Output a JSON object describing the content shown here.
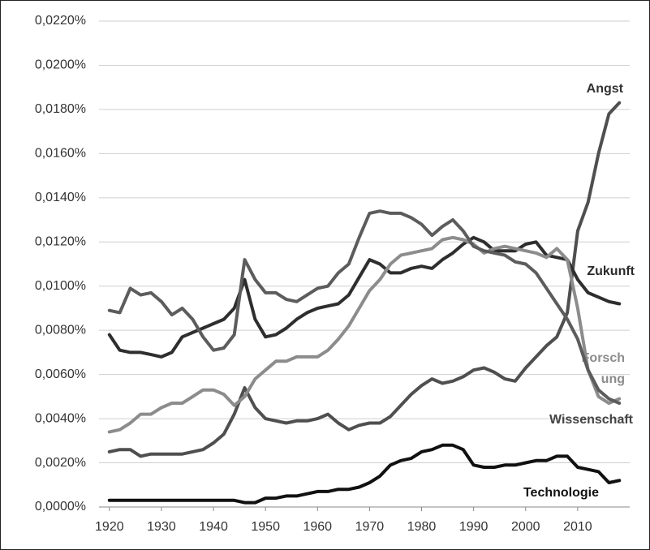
{
  "chart_data": {
    "type": "line",
    "x": [
      1920,
      1922,
      1924,
      1926,
      1928,
      1930,
      1932,
      1934,
      1936,
      1938,
      1940,
      1942,
      1944,
      1946,
      1948,
      1950,
      1952,
      1954,
      1956,
      1958,
      1960,
      1962,
      1964,
      1966,
      1968,
      1970,
      1972,
      1974,
      1976,
      1978,
      1980,
      1982,
      1984,
      1986,
      1988,
      1990,
      1992,
      1994,
      1996,
      1998,
      2000,
      2002,
      2004,
      2006,
      2008,
      2010,
      2012,
      2014,
      2016,
      2018
    ],
    "series": [
      {
        "name": "Angst",
        "color": "#4f4f4f",
        "values": [
          0.0025,
          0.0026,
          0.0026,
          0.0023,
          0.0024,
          0.0024,
          0.0024,
          0.0024,
          0.0025,
          0.0026,
          0.0029,
          0.0033,
          0.0042,
          0.0054,
          0.0045,
          0.004,
          0.0039,
          0.0038,
          0.0039,
          0.0039,
          0.004,
          0.0042,
          0.0038,
          0.0035,
          0.0037,
          0.0038,
          0.0038,
          0.0041,
          0.0046,
          0.0051,
          0.0055,
          0.0058,
          0.0056,
          0.0057,
          0.0059,
          0.0062,
          0.0063,
          0.0061,
          0.0058,
          0.0057,
          0.0063,
          0.0068,
          0.0073,
          0.0077,
          0.0088,
          0.0125,
          0.0138,
          0.016,
          0.0178,
          0.0183
        ]
      },
      {
        "name": "Zukunft",
        "color": "#2e2e2e",
        "values": [
          0.0078,
          0.0071,
          0.007,
          0.007,
          0.0069,
          0.0068,
          0.007,
          0.0077,
          0.0079,
          0.0081,
          0.0083,
          0.0085,
          0.009,
          0.0103,
          0.0085,
          0.0077,
          0.0078,
          0.0081,
          0.0085,
          0.0088,
          0.009,
          0.0091,
          0.0092,
          0.0096,
          0.0104,
          0.0112,
          0.011,
          0.0106,
          0.0106,
          0.0108,
          0.0109,
          0.0108,
          0.0112,
          0.0115,
          0.0119,
          0.0122,
          0.012,
          0.0116,
          0.0116,
          0.0116,
          0.0119,
          0.012,
          0.0114,
          0.0113,
          0.0112,
          0.0103,
          0.0097,
          0.0095,
          0.0093,
          0.0092
        ]
      },
      {
        "name": "Forsch ung",
        "color": "#8c8c8c",
        "values": [
          0.0034,
          0.0035,
          0.0038,
          0.0042,
          0.0042,
          0.0045,
          0.0047,
          0.0047,
          0.005,
          0.0053,
          0.0053,
          0.0051,
          0.0046,
          0.005,
          0.0058,
          0.0062,
          0.0066,
          0.0066,
          0.0068,
          0.0068,
          0.0068,
          0.0071,
          0.0076,
          0.0082,
          0.009,
          0.0098,
          0.0103,
          0.011,
          0.0114,
          0.0115,
          0.0116,
          0.0117,
          0.0121,
          0.0122,
          0.0121,
          0.0119,
          0.0115,
          0.0117,
          0.0118,
          0.0117,
          0.0116,
          0.0115,
          0.0113,
          0.0117,
          0.0112,
          0.009,
          0.0062,
          0.005,
          0.0047,
          0.0049
        ]
      },
      {
        "name": "Wissenschaft",
        "color": "#5c5c5c",
        "values": [
          0.0089,
          0.0088,
          0.0099,
          0.0096,
          0.0097,
          0.0093,
          0.0087,
          0.009,
          0.0085,
          0.0077,
          0.0071,
          0.0072,
          0.0078,
          0.0112,
          0.0103,
          0.0097,
          0.0097,
          0.0094,
          0.0093,
          0.0096,
          0.0099,
          0.01,
          0.0106,
          0.011,
          0.0122,
          0.0133,
          0.0134,
          0.0133,
          0.0133,
          0.0131,
          0.0128,
          0.0123,
          0.0127,
          0.013,
          0.0125,
          0.0118,
          0.0116,
          0.0115,
          0.0114,
          0.0111,
          0.011,
          0.0106,
          0.0099,
          0.0092,
          0.0085,
          0.0076,
          0.0062,
          0.0053,
          0.0049,
          0.0047
        ]
      },
      {
        "name": "Technologie",
        "color": "#111111",
        "values": [
          0.0003,
          0.0003,
          0.0003,
          0.0003,
          0.0003,
          0.0003,
          0.0003,
          0.0003,
          0.0003,
          0.0003,
          0.0003,
          0.0003,
          0.0003,
          0.0002,
          0.0002,
          0.0004,
          0.0004,
          0.0005,
          0.0005,
          0.0006,
          0.0007,
          0.0007,
          0.0008,
          0.0008,
          0.0009,
          0.0011,
          0.0014,
          0.0019,
          0.0021,
          0.0022,
          0.0025,
          0.0026,
          0.0028,
          0.0028,
          0.0026,
          0.0019,
          0.0018,
          0.0018,
          0.0019,
          0.0019,
          0.002,
          0.0021,
          0.0021,
          0.0023,
          0.0023,
          0.0018,
          0.0017,
          0.0016,
          0.0011,
          0.0012
        ]
      }
    ],
    "xlim": [
      1918,
      2020
    ],
    "xticks": [
      1920,
      1930,
      1940,
      1950,
      1960,
      1970,
      1980,
      1990,
      2000,
      2010
    ],
    "ylim": [
      0,
      0.022
    ],
    "yticks": [
      {
        "value": 0,
        "label": "0,0000%"
      },
      {
        "value": 0.002,
        "label": "0,0020%"
      },
      {
        "value": 0.004,
        "label": "0,0040%"
      },
      {
        "value": 0.006,
        "label": "0,0060%"
      },
      {
        "value": 0.008,
        "label": "0,0080%"
      },
      {
        "value": 0.01,
        "label": "0,0100%"
      },
      {
        "value": 0.012,
        "label": "0,0120%"
      },
      {
        "value": 0.014,
        "label": "0,0140%"
      },
      {
        "value": 0.016,
        "label": "0,0160%"
      },
      {
        "value": 0.018,
        "label": "0,0180%"
      },
      {
        "value": 0.02,
        "label": "0,0200%"
      },
      {
        "value": 0.022,
        "label": "0,0220%"
      }
    ],
    "grid": true
  }
}
